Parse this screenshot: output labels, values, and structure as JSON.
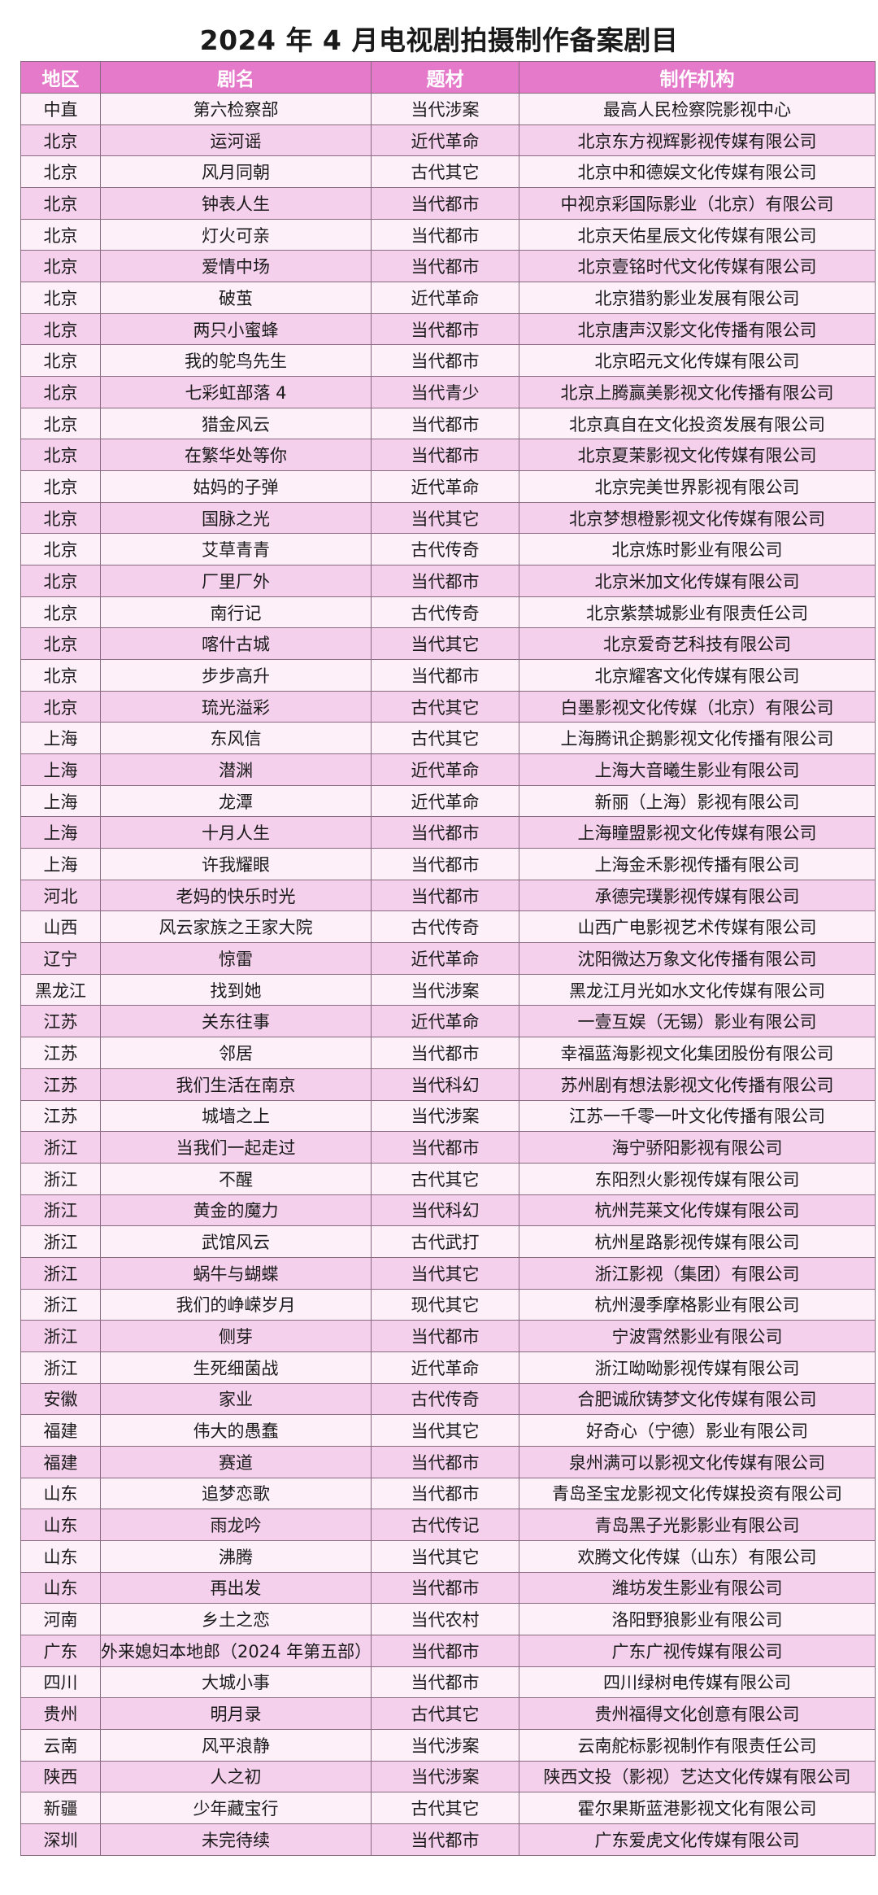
{
  "title": "2024 年 4 月电视剧拍摄制作备案剧目",
  "colors": {
    "header": "#e57acb",
    "row_light": "#fdf0f8",
    "row_dark": "#f5d0ec"
  },
  "table": {
    "headers": [
      "地区",
      "剧名",
      "题材",
      "制作机构"
    ],
    "rows": [
      [
        "中直",
        "第六检察部",
        "当代涉案",
        "最高人民检察院影视中心"
      ],
      [
        "北京",
        "运河谣",
        "近代革命",
        "北京东方视辉影视传媒有限公司"
      ],
      [
        "北京",
        "风月同朝",
        "古代其它",
        "北京中和德娱文化传媒有限公司"
      ],
      [
        "北京",
        "钟表人生",
        "当代都市",
        "中视京彩国际影业（北京）有限公司"
      ],
      [
        "北京",
        "灯火可亲",
        "当代都市",
        "北京天佑星辰文化传媒有限公司"
      ],
      [
        "北京",
        "爱情中场",
        "当代都市",
        "北京壹铭时代文化传媒有限公司"
      ],
      [
        "北京",
        "破茧",
        "近代革命",
        "北京猎豹影业发展有限公司"
      ],
      [
        "北京",
        "两只小蜜蜂",
        "当代都市",
        "北京唐声汉影文化传播有限公司"
      ],
      [
        "北京",
        "我的鸵鸟先生",
        "当代都市",
        "北京昭元文化传媒有限公司"
      ],
      [
        "北京",
        "七彩虹部落 4",
        "当代青少",
        "北京上腾赢美影视文化传播有限公司"
      ],
      [
        "北京",
        "猎金风云",
        "当代都市",
        "北京真自在文化投资发展有限公司"
      ],
      [
        "北京",
        "在繁华处等你",
        "当代都市",
        "北京夏茉影视文化传媒有限公司"
      ],
      [
        "北京",
        "姑妈的子弹",
        "近代革命",
        "北京完美世界影视有限公司"
      ],
      [
        "北京",
        "国脉之光",
        "当代其它",
        "北京梦想橙影视文化传媒有限公司"
      ],
      [
        "北京",
        "艾草青青",
        "古代传奇",
        "北京炼时影业有限公司"
      ],
      [
        "北京",
        "厂里厂外",
        "当代都市",
        "北京米加文化传媒有限公司"
      ],
      [
        "北京",
        "南行记",
        "古代传奇",
        "北京紫禁城影业有限责任公司"
      ],
      [
        "北京",
        "喀什古城",
        "当代其它",
        "北京爱奇艺科技有限公司"
      ],
      [
        "北京",
        "步步高升",
        "当代都市",
        "北京耀客文化传媒有限公司"
      ],
      [
        "北京",
        "琉光溢彩",
        "古代其它",
        "白墨影视文化传媒（北京）有限公司"
      ],
      [
        "上海",
        "东风信",
        "古代其它",
        "上海腾讯企鹅影视文化传播有限公司"
      ],
      [
        "上海",
        "潜渊",
        "近代革命",
        "上海大音曦生影业有限公司"
      ],
      [
        "上海",
        "龙潭",
        "近代革命",
        "新丽（上海）影视有限公司"
      ],
      [
        "上海",
        "十月人生",
        "当代都市",
        "上海瞳盟影视文化传媒有限公司"
      ],
      [
        "上海",
        "许我耀眼",
        "当代都市",
        "上海金禾影视传播有限公司"
      ],
      [
        "河北",
        "老妈的快乐时光",
        "当代都市",
        "承德完璞影视传媒有限公司"
      ],
      [
        "山西",
        "风云家族之王家大院",
        "古代传奇",
        "山西广电影视艺术传媒有限公司"
      ],
      [
        "辽宁",
        "惊雷",
        "近代革命",
        "沈阳微达万象文化传播有限公司"
      ],
      [
        "黑龙江",
        "找到她",
        "当代涉案",
        "黑龙江月光如水文化传媒有限公司"
      ],
      [
        "江苏",
        "关东往事",
        "近代革命",
        "一壹互娱（无锡）影业有限公司"
      ],
      [
        "江苏",
        "邻居",
        "当代都市",
        "幸福蓝海影视文化集团股份有限公司"
      ],
      [
        "江苏",
        "我们生活在南京",
        "当代科幻",
        "苏州剧有想法影视文化传播有限公司"
      ],
      [
        "江苏",
        "城墙之上",
        "当代涉案",
        "江苏一千零一叶文化传播有限公司"
      ],
      [
        "浙江",
        "当我们一起走过",
        "当代都市",
        "海宁骄阳影视有限公司"
      ],
      [
        "浙江",
        "不醒",
        "古代其它",
        "东阳烈火影视传媒有限公司"
      ],
      [
        "浙江",
        "黄金的魔力",
        "当代科幻",
        "杭州芫莱文化传媒有限公司"
      ],
      [
        "浙江",
        "武馆风云",
        "古代武打",
        "杭州星路影视传媒有限公司"
      ],
      [
        "浙江",
        "蜗牛与蝴蝶",
        "当代其它",
        "浙江影视（集团）有限公司"
      ],
      [
        "浙江",
        "我们的峥嵘岁月",
        "现代其它",
        "杭州漫季摩格影业有限公司"
      ],
      [
        "浙江",
        "侧芽",
        "当代都市",
        "宁波霄然影业有限公司"
      ],
      [
        "浙江",
        "生死细菌战",
        "近代革命",
        "浙江呦呦影视传媒有限公司"
      ],
      [
        "安徽",
        "家业",
        "古代传奇",
        "合肥诚欣铸梦文化传媒有限公司"
      ],
      [
        "福建",
        "伟大的愚蠢",
        "当代其它",
        "好奇心（宁德）影业有限公司"
      ],
      [
        "福建",
        "赛道",
        "当代都市",
        "泉州满可以影视文化传媒有限公司"
      ],
      [
        "山东",
        "追梦恋歌",
        "当代都市",
        "青岛圣宝龙影视文化传媒投资有限公司"
      ],
      [
        "山东",
        "雨龙吟",
        "古代传记",
        "青岛黑子光影影业有限公司"
      ],
      [
        "山东",
        "沸腾",
        "当代其它",
        "欢腾文化传媒（山东）有限公司"
      ],
      [
        "山东",
        "再出发",
        "当代都市",
        "潍坊发生影业有限公司"
      ],
      [
        "河南",
        "乡土之恋",
        "当代农村",
        "洛阳野狼影业有限公司"
      ],
      [
        "广东",
        "外来媳妇本地郎（2024 年第五部）",
        "当代都市",
        "广东广视传媒有限公司"
      ],
      [
        "四川",
        "大城小事",
        "当代都市",
        "四川绿树电传媒有限公司"
      ],
      [
        "贵州",
        "明月录",
        "古代其它",
        "贵州福得文化创意有限公司"
      ],
      [
        "云南",
        "风平浪静",
        "当代涉案",
        "云南舵标影视制作有限责任公司"
      ],
      [
        "陕西",
        "人之初",
        "当代涉案",
        "陕西文投（影视）艺达文化传媒有限公司"
      ],
      [
        "新疆",
        "少年藏宝行",
        "古代其它",
        "霍尔果斯蓝港影视文化有限公司"
      ],
      [
        "深圳",
        "未完待续",
        "当代都市",
        "广东爱虎文化传媒有限公司"
      ]
    ]
  }
}
